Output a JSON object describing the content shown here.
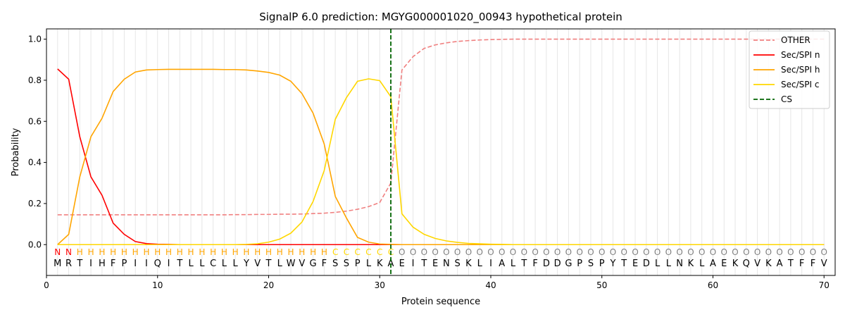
{
  "chart_data": {
    "type": "line",
    "title": "SignalP 6.0 prediction: MGYG000001020_00943 hypothetical protein",
    "xlabel": "Protein sequence",
    "ylabel": "Probability",
    "xlim": [
      0,
      71
    ],
    "ylim": [
      -0.15,
      1.05
    ],
    "xticks": [
      0,
      10,
      20,
      30,
      40,
      50,
      60,
      70
    ],
    "yticks": [
      0.0,
      0.2,
      0.4,
      0.6,
      0.8,
      1.0
    ],
    "xtick_labels": [
      "0",
      "10",
      "20",
      "30",
      "40",
      "50",
      "60",
      "70"
    ],
    "ytick_labels": [
      "0.0",
      "0.2",
      "0.4",
      "0.6",
      "0.8",
      "1.0"
    ],
    "grid": "vertical lines at each residue",
    "legend_position": "top-right",
    "x": [
      1,
      2,
      3,
      4,
      5,
      6,
      7,
      8,
      9,
      10,
      11,
      12,
      13,
      14,
      15,
      16,
      17,
      18,
      19,
      20,
      21,
      22,
      23,
      24,
      25,
      26,
      27,
      28,
      29,
      30,
      31,
      32,
      33,
      34,
      35,
      36,
      37,
      38,
      39,
      40,
      41,
      42,
      43,
      44,
      45,
      46,
      47,
      48,
      49,
      50,
      51,
      52,
      53,
      54,
      55,
      56,
      57,
      58,
      59,
      60,
      61,
      62,
      63,
      64,
      65,
      66,
      67,
      68,
      69,
      70
    ],
    "series": [
      {
        "name": "OTHER",
        "color": "#f08080",
        "dash": "dashed",
        "values": [
          0.145,
          0.145,
          0.145,
          0.145,
          0.145,
          0.145,
          0.145,
          0.145,
          0.145,
          0.145,
          0.145,
          0.145,
          0.145,
          0.145,
          0.145,
          0.145,
          0.146,
          0.146,
          0.147,
          0.147,
          0.148,
          0.148,
          0.149,
          0.151,
          0.153,
          0.157,
          0.163,
          0.172,
          0.185,
          0.205,
          0.3,
          0.85,
          0.915,
          0.955,
          0.972,
          0.982,
          0.989,
          0.993,
          0.996,
          0.998,
          0.999,
          1.0,
          1.0,
          1.0,
          1.0,
          1.0,
          1.0,
          1.0,
          1.0,
          1.0,
          1.0,
          1.0,
          1.0,
          1.0,
          1.0,
          1.0,
          1.0,
          1.0,
          1.0,
          1.0,
          1.0,
          1.0,
          1.0,
          1.0,
          1.0,
          1.0,
          1.0,
          1.0,
          1.0,
          1.0
        ]
      },
      {
        "name": "Sec/SPI n",
        "color": "#ff0000",
        "dash": "solid",
        "values": [
          0.855,
          0.805,
          0.525,
          0.33,
          0.24,
          0.105,
          0.05,
          0.015,
          0.005,
          0.002,
          0.001,
          0,
          0,
          0,
          0,
          0,
          0,
          0,
          0,
          0,
          0,
          0,
          0,
          0,
          0,
          0,
          0,
          0,
          0,
          0,
          0,
          0,
          0,
          0,
          0,
          0,
          0,
          0,
          0,
          0,
          0,
          0,
          0,
          0,
          0,
          0,
          0,
          0,
          0,
          0,
          0,
          0,
          0,
          0,
          0,
          0,
          0,
          0,
          0,
          0,
          0,
          0,
          0,
          0,
          0,
          0,
          0,
          0,
          0,
          0
        ]
      },
      {
        "name": "Sec/SPI h",
        "color": "#ffa500",
        "dash": "solid",
        "values": [
          0.0,
          0.05,
          0.33,
          0.525,
          0.615,
          0.745,
          0.805,
          0.84,
          0.85,
          0.852,
          0.853,
          0.853,
          0.853,
          0.853,
          0.853,
          0.852,
          0.852,
          0.85,
          0.845,
          0.838,
          0.825,
          0.795,
          0.735,
          0.64,
          0.49,
          0.235,
          0.13,
          0.035,
          0.012,
          0.003,
          0.001,
          0,
          0,
          0,
          0,
          0,
          0,
          0,
          0,
          0,
          0,
          0,
          0,
          0,
          0,
          0,
          0,
          0,
          0,
          0,
          0,
          0,
          0,
          0,
          0,
          0,
          0,
          0,
          0,
          0,
          0,
          0,
          0,
          0,
          0,
          0,
          0,
          0,
          0,
          0
        ]
      },
      {
        "name": "Sec/SPI c",
        "color": "#ffd700",
        "dash": "solid",
        "values": [
          0,
          0,
          0,
          0,
          0,
          0,
          0,
          0,
          0,
          0,
          0,
          0,
          0,
          0,
          0,
          0,
          0,
          0.001,
          0.004,
          0.012,
          0.027,
          0.056,
          0.11,
          0.21,
          0.36,
          0.61,
          0.715,
          0.795,
          0.807,
          0.798,
          0.72,
          0.15,
          0.085,
          0.05,
          0.03,
          0.018,
          0.011,
          0.006,
          0.004,
          0.002,
          0.001,
          0,
          0,
          0,
          0,
          0,
          0,
          0,
          0,
          0,
          0,
          0,
          0,
          0,
          0,
          0,
          0,
          0,
          0,
          0,
          0,
          0,
          0,
          0,
          0,
          0,
          0,
          0,
          0,
          0
        ]
      }
    ],
    "cleavage_site": {
      "name": "CS",
      "x": 31,
      "color": "#006400",
      "dash": "dashed"
    },
    "sequence": [
      "M",
      "R",
      "T",
      "I",
      "H",
      "F",
      "P",
      "I",
      "I",
      "Q",
      "I",
      "T",
      "L",
      "L",
      "C",
      "L",
      "L",
      "Y",
      "V",
      "T",
      "L",
      "W",
      "V",
      "G",
      "F",
      "S",
      "S",
      "P",
      "L",
      "K",
      "A",
      "E",
      "I",
      "T",
      "E",
      "N",
      "S",
      "K",
      "L",
      "I",
      "A",
      "L",
      "T",
      "F",
      "D",
      "D",
      "G",
      "P",
      "S",
      "P",
      "Y",
      "T",
      "E",
      "D",
      "L",
      "L",
      "N",
      "K",
      "L",
      "A",
      "E",
      "K",
      "Q",
      "V",
      "K",
      "A",
      "T",
      "F",
      "F",
      "V"
    ],
    "labels": [
      "N",
      "N",
      "H",
      "H",
      "H",
      "H",
      "H",
      "H",
      "H",
      "H",
      "H",
      "H",
      "H",
      "H",
      "H",
      "H",
      "H",
      "H",
      "H",
      "H",
      "H",
      "H",
      "H",
      "H",
      "H",
      "C",
      "C",
      "C",
      "C",
      "C",
      "C",
      "O",
      "O",
      "O",
      "O",
      "O",
      "O",
      "O",
      "O",
      "O",
      "O",
      "O",
      "O",
      "O",
      "O",
      "O",
      "O",
      "O",
      "O",
      "O",
      "O",
      "O",
      "O",
      "O",
      "O",
      "O",
      "O",
      "O",
      "O",
      "O",
      "O",
      "O",
      "O",
      "O",
      "O",
      "O",
      "O",
      "O",
      "O",
      "O"
    ],
    "label_colors": {
      "N": "#ff0000",
      "H": "#ffa500",
      "C": "#ffd700",
      "O": "#808080"
    }
  }
}
